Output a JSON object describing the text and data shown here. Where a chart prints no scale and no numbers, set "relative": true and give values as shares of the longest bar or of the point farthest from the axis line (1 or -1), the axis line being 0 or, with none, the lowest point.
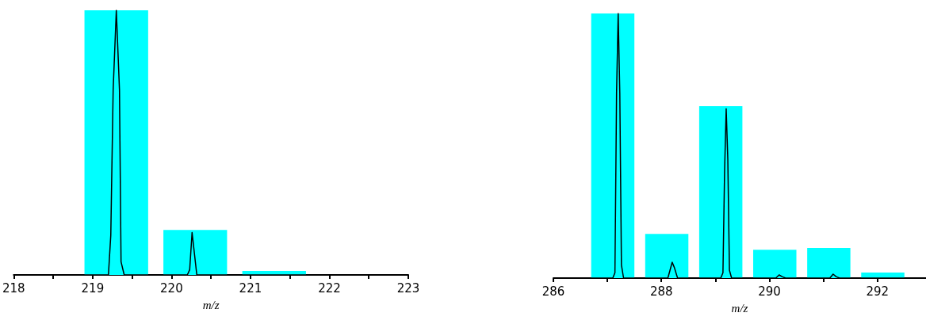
{
  "chart_data": [
    {
      "type": "bar",
      "relative": true,
      "xlabel": "m/z",
      "xlim": [
        218,
        223
      ],
      "xticks": [
        218,
        {
          "value": 218.5,
          "label": null
        },
        219,
        {
          "value": 219.5,
          "label": null
        },
        220,
        {
          "value": 220.5,
          "label": null
        },
        221,
        {
          "value": 221.5,
          "label": null
        },
        222,
        {
          "value": 222.5,
          "label": null
        },
        223
      ],
      "grid": false,
      "series": [
        {
          "color": "#00ffff",
          "x": [
            219.3,
            220.3,
            221.3
          ],
          "values": [
            1,
            0.17,
            0.015
          ]
        },
        {
          "type": "line",
          "color": "#000000",
          "marker": "none",
          "x": [
            218.0,
            219.2,
            219.23,
            219.26,
            219.3,
            219.34,
            219.36,
            219.4,
            220.2,
            220.23,
            220.26,
            220.29,
            220.32,
            220.4,
            223.0
          ],
          "values": [
            0,
            0,
            0.15,
            0.7,
            1,
            0.7,
            0.05,
            0,
            0,
            0.02,
            0.16,
            0.08,
            0,
            0,
            0
          ]
        }
      ]
    },
    {
      "type": "bar",
      "relative": true,
      "xlabel": "m/z",
      "xlim": [
        286,
        292.9
      ],
      "xticks": [
        286,
        {
          "value": 287,
          "label": null
        },
        288,
        {
          "value": 289,
          "label": null
        },
        290,
        {
          "value": 291,
          "label": null
        },
        292
      ],
      "grid": false,
      "series": [
        {
          "color": "#00ffff",
          "x": [
            287.1,
            288.1,
            289.1,
            290.1,
            291.1,
            292.1
          ],
          "values": [
            1,
            0.167,
            0.65,
            0.107,
            0.114,
            0.021
          ]
        },
        {
          "type": "line",
          "color": "#000000",
          "marker": "none",
          "x": [
            286.0,
            287.1,
            287.14,
            287.17,
            287.2,
            287.23,
            287.26,
            287.3,
            288.12,
            288.16,
            288.2,
            288.24,
            288.3,
            289.1,
            289.14,
            289.17,
            289.2,
            289.23,
            289.26,
            289.3,
            290.12,
            290.18,
            290.24,
            290.3,
            291.12,
            291.18,
            291.24,
            291.3,
            292.9
          ],
          "values": [
            0,
            0,
            0.02,
            0.7,
            1,
            0.7,
            0.05,
            0,
            0,
            0.03,
            0.06,
            0.04,
            0,
            0,
            0.02,
            0.4,
            0.64,
            0.45,
            0.03,
            0,
            0,
            0.012,
            0.005,
            0,
            0,
            0.015,
            0.005,
            0,
            0
          ]
        }
      ]
    }
  ]
}
